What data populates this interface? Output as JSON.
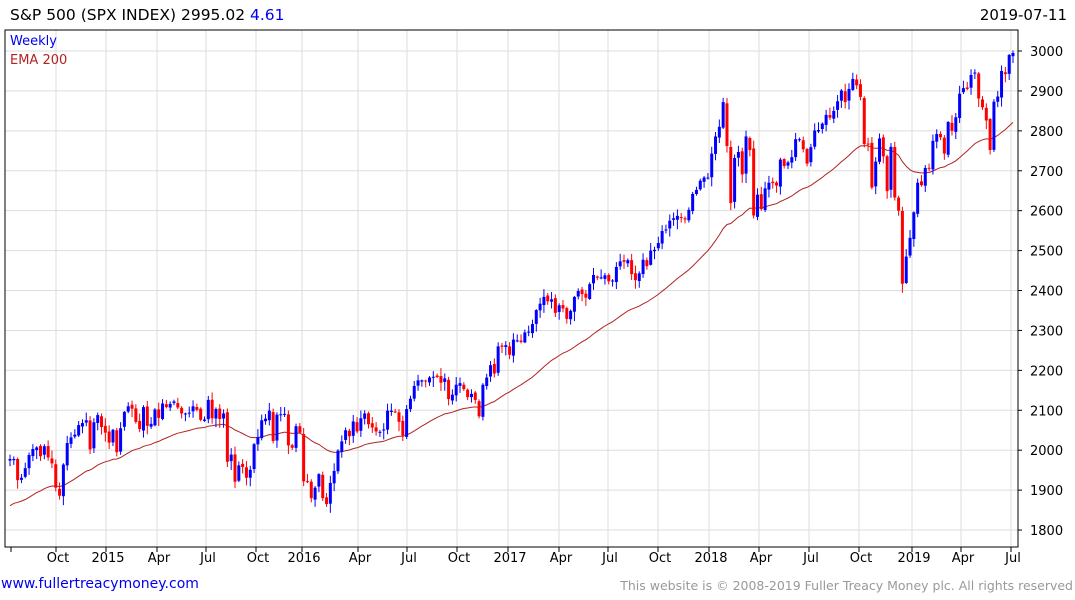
{
  "header": {
    "title": "S&P 500 (SPX INDEX) 2995.02",
    "change": "4.61",
    "date": "2019-07-11"
  },
  "footer": {
    "link": "www.fullertreacymoney.com",
    "copyright": "This website is © 2008-2019 Fuller Treacy Money plc. All rights reserved"
  },
  "colors": {
    "up": "#0000ff",
    "down": "#ff0000",
    "ema": "#b22222",
    "grid": "#dddddd"
  },
  "chart_data": {
    "type": "candlestick",
    "title": "S&P 500 (SPX INDEX)",
    "legend": [
      "Weekly",
      "EMA 200"
    ],
    "legend_position": "top-left",
    "ylim": [
      1770,
      3050
    ],
    "yticks": [
      1800,
      1900,
      2000,
      2100,
      2200,
      2300,
      2400,
      2500,
      2600,
      2700,
      2800,
      2900,
      3000
    ],
    "xtick_labels": [
      "Oct",
      "2015",
      "Apr",
      "Jul",
      "Oct",
      "2016",
      "Apr",
      "Jul",
      "Oct",
      "2017",
      "Apr",
      "Jul",
      "Oct",
      "2018",
      "Apr",
      "Jul",
      "Oct",
      "2019",
      "Apr",
      "Jul"
    ],
    "grid": true,
    "ema_weeks": 40,
    "ema_start": 1855,
    "weekly_close": [
      1978,
      1978,
      1925,
      1931,
      1955,
      1988,
      2003,
      2007,
      1985,
      2010,
      1982,
      1967,
      1906,
      1886,
      1964,
      2018,
      2032,
      2039,
      2063,
      2068,
      2075,
      2002,
      2070,
      2088,
      2058,
      2044,
      2019,
      2051,
      1995,
      2055,
      2096,
      2110,
      2104,
      2071,
      2053,
      2108,
      2061,
      2066,
      2102,
      2081,
      2117,
      2108,
      2116,
      2122,
      2107,
      2092,
      2092,
      2094,
      2110,
      2101,
      2076,
      2077,
      2126,
      2080,
      2103,
      2078,
      2092,
      1971,
      1989,
      1921,
      1962,
      1958,
      1931,
      1951,
      2015,
      2033,
      2075,
      2079,
      2099,
      2023,
      2089,
      2090,
      2091,
      2012,
      2006,
      2060,
      2044,
      1922,
      1922,
      1880,
      1906,
      1940,
      1880,
      1865,
      1918,
      1948,
      1999,
      2022,
      2050,
      2035,
      2072,
      2047,
      2080,
      2092,
      2065,
      2057,
      2047,
      2046,
      2052,
      2099,
      2099,
      2096,
      2071,
      2037,
      2103,
      2129,
      2161,
      2175,
      2175,
      2173,
      2182,
      2184,
      2183,
      2169,
      2180,
      2128,
      2139,
      2164,
      2168,
      2153,
      2133,
      2141,
      2126,
      2085,
      2164,
      2182,
      2213,
      2192,
      2260,
      2259,
      2263,
      2239,
      2277,
      2275,
      2271,
      2295,
      2297,
      2316,
      2351,
      2367,
      2384,
      2373,
      2378,
      2344,
      2363,
      2355,
      2329,
      2349,
      2384,
      2399,
      2391,
      2382,
      2416,
      2439,
      2432,
      2433,
      2438,
      2423,
      2425,
      2459,
      2473,
      2472,
      2476,
      2441,
      2426,
      2443,
      2477,
      2461,
      2500,
      2502,
      2519,
      2549,
      2553,
      2575,
      2581,
      2587,
      2582,
      2578,
      2602,
      2642,
      2652,
      2675,
      2683,
      2683,
      2743,
      2786,
      2810,
      2872,
      2762,
      2619,
      2732,
      2747,
      2691,
      2786,
      2752,
      2588,
      2640,
      2604,
      2656,
      2670,
      2669,
      2663,
      2728,
      2712,
      2721,
      2734,
      2779,
      2779,
      2754,
      2718,
      2759,
      2801,
      2802,
      2818,
      2840,
      2833,
      2850,
      2874,
      2901,
      2872,
      2905,
      2930,
      2914,
      2885,
      2767,
      2768,
      2658,
      2723,
      2781,
      2736,
      2649,
      2760,
      2633,
      2600,
      2417,
      2485,
      2532,
      2596,
      2670,
      2664,
      2707,
      2707,
      2775,
      2792,
      2784,
      2743,
      2822,
      2800,
      2834,
      2893,
      2907,
      2905,
      2940,
      2946,
      2881,
      2859,
      2826,
      2752,
      2873,
      2886,
      2950,
      2942,
      2990,
      2995
    ]
  }
}
